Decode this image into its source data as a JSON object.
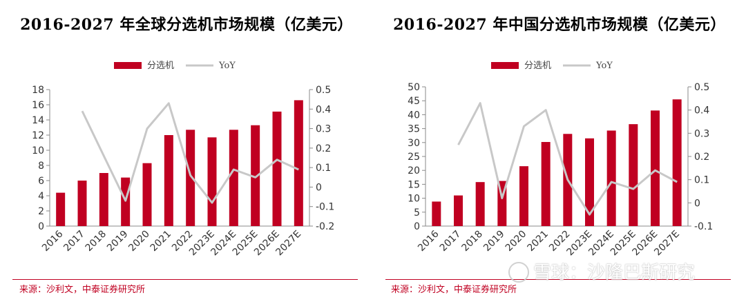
{
  "chart_data": [
    {
      "type": "bar",
      "title": "2016-2027 年全球分选机市场规模（亿美元）",
      "categories": [
        "2016",
        "2017",
        "2018",
        "2019",
        "2020",
        "2021",
        "2022",
        "2023E",
        "2024E",
        "2025E",
        "2026E",
        "2027E"
      ],
      "series": [
        {
          "name": "分选机",
          "type": "bar",
          "axis": "left",
          "color": "#c00021",
          "values": [
            4.4,
            6.0,
            7.0,
            6.4,
            8.3,
            12.0,
            12.7,
            11.7,
            12.7,
            13.3,
            15.1,
            16.6
          ]
        },
        {
          "name": "YoY",
          "type": "line",
          "axis": "right",
          "color": "#c8c8c8",
          "values": [
            null,
            0.39,
            0.16,
            -0.07,
            0.3,
            0.43,
            0.06,
            -0.08,
            0.09,
            0.05,
            0.14,
            0.09
          ]
        }
      ],
      "ylim": [
        0,
        18
      ],
      "yticks": [
        0,
        2,
        4,
        6,
        8,
        10,
        12,
        14,
        16,
        18
      ],
      "y2lim": [
        -0.2,
        0.5
      ],
      "y2ticks": [
        "-0.2",
        "-0.1",
        "0",
        "0.1",
        "0.2",
        "0.3",
        "0.4",
        "0.5"
      ],
      "y2tick_values": [
        -0.2,
        -0.1,
        0,
        0.1,
        0.2,
        0.3,
        0.4,
        0.5
      ],
      "legend_position": "top-center",
      "grid": false,
      "source": "来源：沙利文，中泰证券研究所"
    },
    {
      "type": "bar",
      "title": "2016-2027 年中国分选机市场规模（亿美元）",
      "categories": [
        "2016",
        "2017",
        "2018",
        "2019",
        "2020",
        "2021",
        "2022",
        "2023E",
        "2024E",
        "2025E",
        "2026E",
        "2027E"
      ],
      "series": [
        {
          "name": "分选机",
          "type": "bar",
          "axis": "left",
          "color": "#c00021",
          "values": [
            8.8,
            11.0,
            15.8,
            16.2,
            21.5,
            30.2,
            33.1,
            31.5,
            34.3,
            36.6,
            41.5,
            45.5
          ]
        },
        {
          "name": "YoY",
          "type": "line",
          "axis": "right",
          "color": "#c8c8c8",
          "values": [
            null,
            0.25,
            0.43,
            0.02,
            0.33,
            0.4,
            0.1,
            -0.05,
            0.09,
            0.06,
            0.14,
            0.09
          ]
        }
      ],
      "ylim": [
        0,
        50
      ],
      "yticks": [
        0,
        5,
        10,
        15,
        20,
        25,
        30,
        35,
        40,
        45,
        50
      ],
      "y2lim": [
        -0.1,
        0.5
      ],
      "y2ticks": [
        "-0.1",
        "0",
        "0.1",
        "0.2",
        "0.3",
        "0.4",
        "0.5"
      ],
      "y2tick_values": [
        -0.1,
        0,
        0.1,
        0.2,
        0.3,
        0.4,
        0.5
      ],
      "legend_position": "top-center",
      "grid": false,
      "source": "来源：沙利文，中泰证券研究所"
    }
  ],
  "watermark": "雪球：沙隆巴斯研究"
}
